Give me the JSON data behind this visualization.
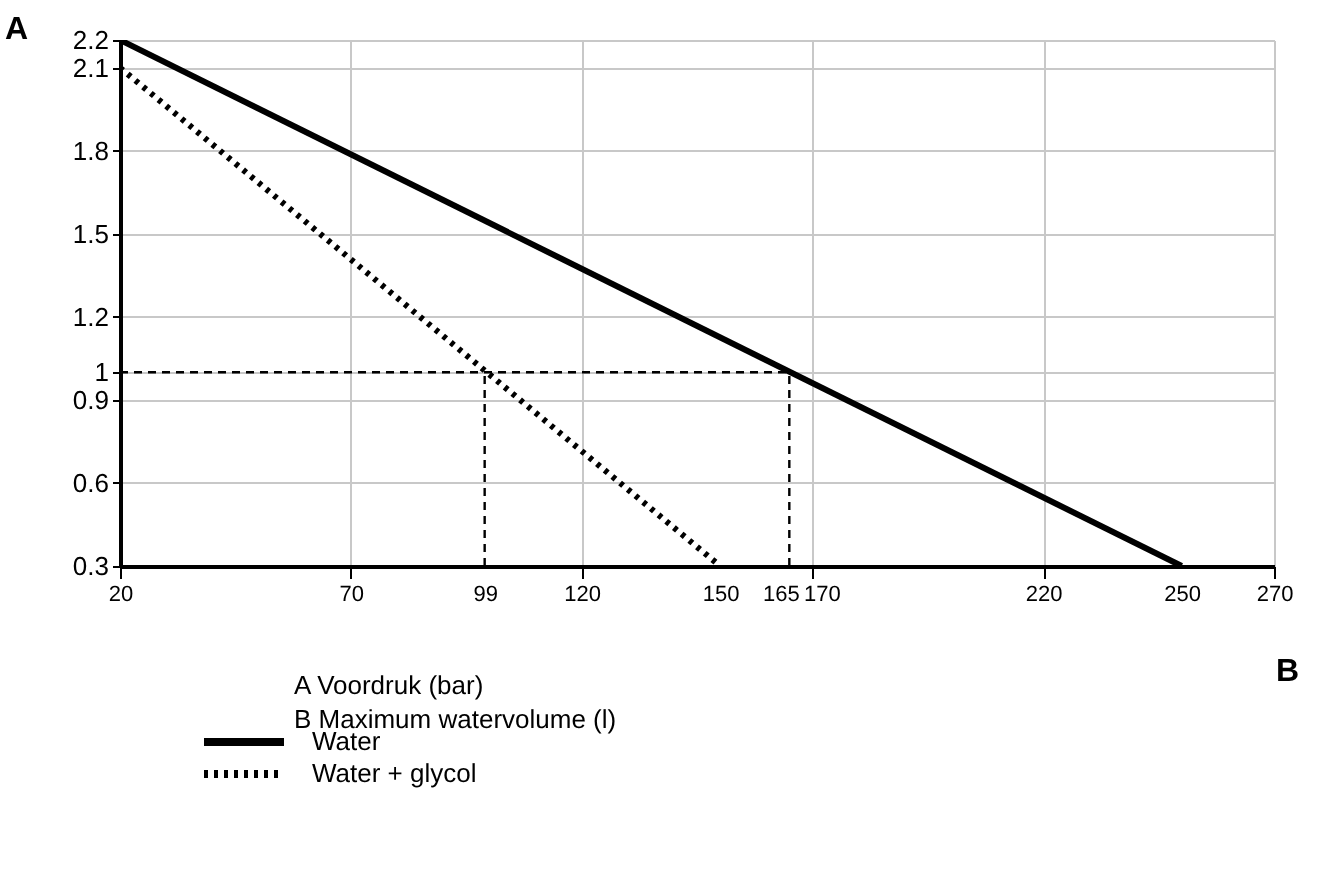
{
  "chart_data": {
    "type": "line",
    "xlabel": "B",
    "ylabel": "A",
    "xlim": [
      20,
      270
    ],
    "xticks": [
      20,
      70,
      99,
      120,
      150,
      165,
      170,
      220,
      250,
      270
    ],
    "ylim": [
      0.3,
      2.2
    ],
    "yticks": [
      0.3,
      0.6,
      0.9,
      1,
      1.2,
      1.5,
      1.8,
      2.1,
      2.2
    ],
    "grid": true,
    "legend": "bottom",
    "marker": "none",
    "series": [
      {
        "name": "Water",
        "color": "#000000",
        "x": [
          20,
          250
        ],
        "values": [
          2.2,
          0.3
        ],
        "line_style": "solid"
      },
      {
        "name": "Water + glycol",
        "color": "#000000",
        "x": [
          20,
          150
        ],
        "values": [
          2.1,
          0.3
        ],
        "line_style": "dotted"
      }
    ],
    "ref_lines": [
      {
        "axis": "y",
        "value": 1,
        "line_style": "dashed",
        "color": "#000000"
      },
      {
        "axis": "x",
        "value": 99,
        "line_style": "dashed",
        "color": "#000000"
      },
      {
        "axis": "x",
        "value": 165,
        "line_style": "dashed",
        "color": "#000000"
      }
    ],
    "annotations": [
      "A   Voordruk (bar)",
      "B   Maximum watervolume (l)"
    ]
  }
}
